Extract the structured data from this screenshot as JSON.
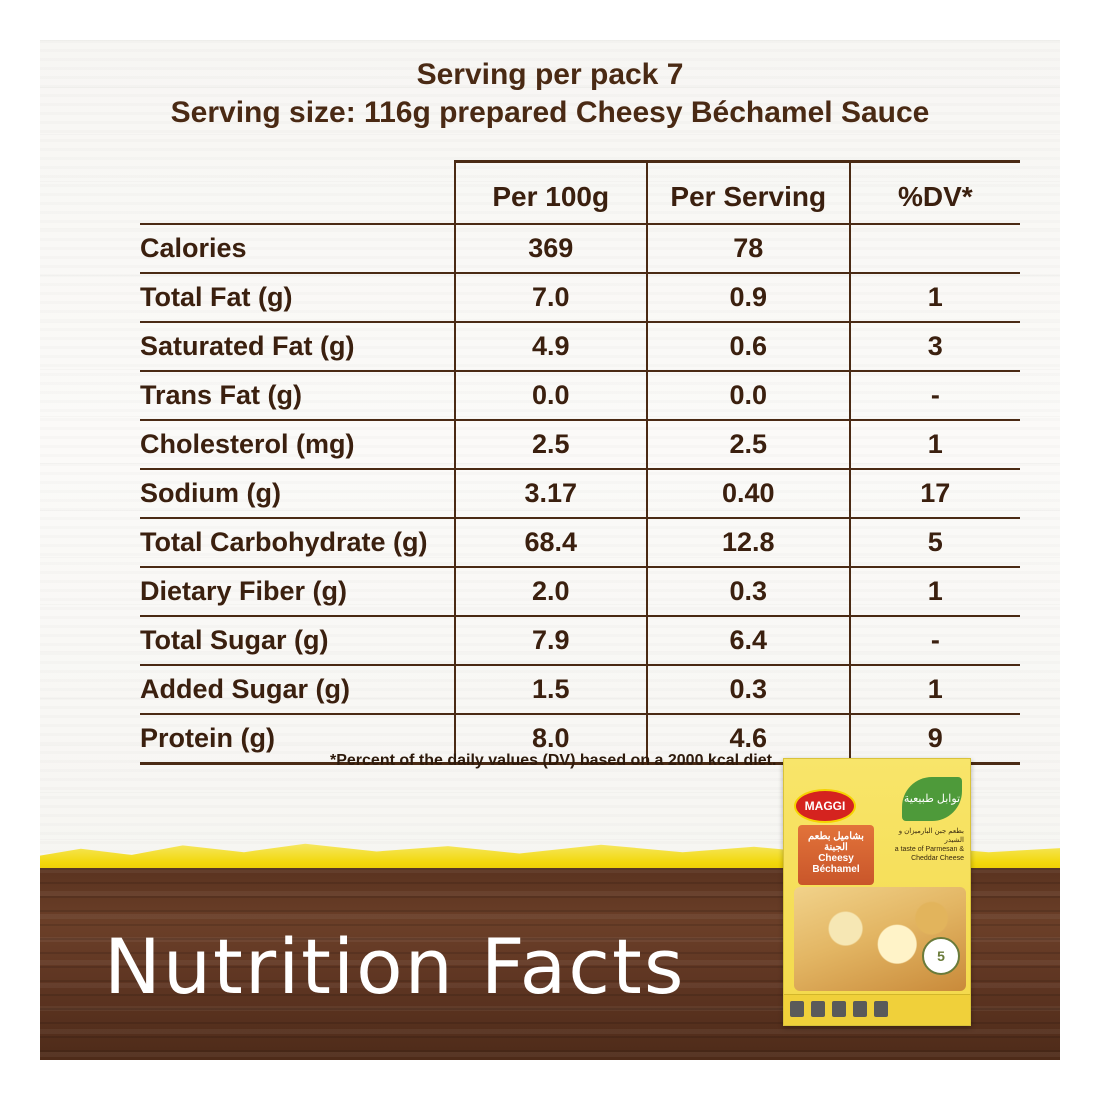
{
  "header": {
    "line1": "Serving per pack 7",
    "line2": "Serving size: 116g prepared Cheesy Béchamel Sauce"
  },
  "table": {
    "columns": [
      "",
      "Per 100g",
      "Per Serving",
      "%DV*"
    ],
    "rows": [
      {
        "label": "Calories",
        "per100": "369",
        "perServing": "78",
        "dv": ""
      },
      {
        "label": "Total Fat (g)",
        "per100": "7.0",
        "perServing": "0.9",
        "dv": "1"
      },
      {
        "label": "Saturated Fat (g)",
        "per100": "4.9",
        "perServing": "0.6",
        "dv": "3"
      },
      {
        "label": "Trans Fat (g)",
        "per100": "0.0",
        "perServing": "0.0",
        "dv": "-"
      },
      {
        "label": "Cholesterol (mg)",
        "per100": "2.5",
        "perServing": "2.5",
        "dv": "1"
      },
      {
        "label": "Sodium (g)",
        "per100": "3.17",
        "perServing": "0.40",
        "dv": "17"
      },
      {
        "label": "Total Carbohydrate (g)",
        "per100": "68.4",
        "perServing": "12.8",
        "dv": "5"
      },
      {
        "label": "Dietary Fiber (g)",
        "per100": "2.0",
        "perServing": "0.3",
        "dv": "1"
      },
      {
        "label": "Total Sugar (g)",
        "per100": "7.9",
        "perServing": "6.4",
        "dv": "-"
      },
      {
        "label": "Added Sugar (g)",
        "per100": "1.5",
        "perServing": "0.3",
        "dv": "1"
      },
      {
        "label": "Protein (g)",
        "per100": "8.0",
        "perServing": "4.6",
        "dv": "9"
      }
    ]
  },
  "footnote": "*Percent of the daily values (DV) based on a 2000 kcal diet.",
  "banner_title": "Nutrition Facts",
  "product": {
    "brand": "MAGGI",
    "name_ar": "بشاميل بطعم الجبنة",
    "name_en": "Cheesy Béchamel",
    "tag_ar": "توابل طبيعية",
    "desc_ar": "بطعم جبن البارميزان و الشيدر",
    "desc_en": "a taste of Parmesan & Cheddar Cheese",
    "badge": "5"
  },
  "colors": {
    "text_brown": "#4a2a14",
    "wood": "#5e3522",
    "yellow": "#f2d80c",
    "maggi_red": "#d5231f"
  }
}
